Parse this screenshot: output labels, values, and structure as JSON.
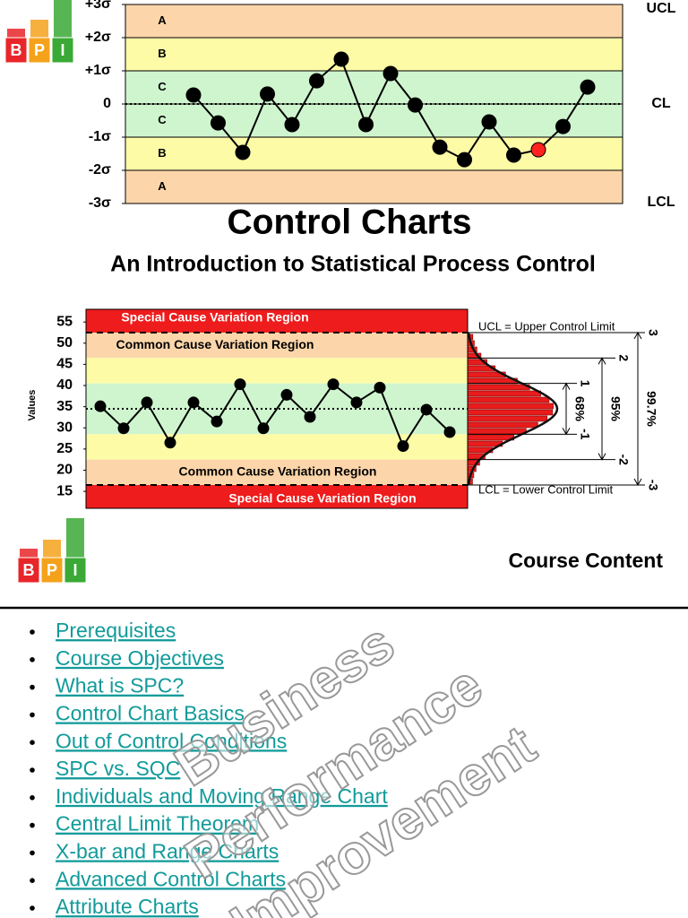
{
  "logo": [
    "B",
    "P",
    "I"
  ],
  "header": {
    "title": "Control Charts",
    "subtitle": "An Introduction to  Statistical Process Control"
  },
  "chart_data": [
    {
      "type": "line",
      "ylim": [
        -3,
        3
      ],
      "yticks": [
        {
          "value": 3,
          "label": "+3σ"
        },
        {
          "value": 2,
          "label": "+2σ"
        },
        {
          "value": 1,
          "label": "+1σ"
        },
        0,
        {
          "value": -1,
          "label": "-1σ"
        },
        {
          "value": -2,
          "label": "-2σ"
        },
        {
          "value": -3,
          "label": "-3σ"
        }
      ],
      "zones": [
        {
          "label": "A",
          "from": 2,
          "to": 3,
          "color": "#fcd6aa"
        },
        {
          "label": "B",
          "from": 1,
          "to": 2,
          "color": "#fdfba6"
        },
        {
          "label": "C",
          "from": 0,
          "to": 1,
          "color": "#cff5cf"
        },
        {
          "label": "C",
          "from": -1,
          "to": 0,
          "color": "#cff5cf"
        },
        {
          "label": "B",
          "from": -2,
          "to": -1,
          "color": "#fdfba6"
        },
        {
          "label": "A",
          "from": -3,
          "to": -2,
          "color": "#fcd6aa"
        }
      ],
      "values": [
        0.27,
        -0.57,
        -1.46,
        0.3,
        -0.62,
        0.7,
        1.35,
        -0.62,
        0.92,
        -0.03,
        -1.3,
        -1.68,
        -0.54,
        -1.54,
        -1.38,
        -0.68,
        0.51
      ],
      "point_color": "#000000",
      "highlight": {
        "index": 14,
        "color": "#ff2020"
      },
      "limit_labels": [
        {
          "label": "UCL",
          "value": 3
        },
        {
          "label": "CL",
          "value": 0
        },
        {
          "label": "LCL",
          "value": -3
        }
      ]
    },
    {
      "type": "line",
      "y_label": "Values",
      "ylim": [
        11,
        58
      ],
      "yticks": [
        15,
        20,
        25,
        30,
        35,
        40,
        45,
        50,
        55
      ],
      "regions": [
        {
          "from": 52.5,
          "to": 58,
          "color": "#ee1c1c",
          "label": "Special Cause Variation Region"
        },
        {
          "from": 46.5,
          "to": 52.5,
          "color": "#fcd6aa",
          "label": "Common Cause Variation Region"
        },
        {
          "from": 40.5,
          "to": 46.5,
          "color": "#fdfba6"
        },
        {
          "from": 28.5,
          "to": 40.5,
          "color": "#cff5cf"
        },
        {
          "from": 22.5,
          "to": 28.5,
          "color": "#fdfba6"
        },
        {
          "from": 16.5,
          "to": 22.5,
          "color": "#fcd6aa",
          "label": "Common Cause Variation Region"
        },
        {
          "from": 11,
          "to": 16.5,
          "color": "#ee1c1c",
          "label": "Special Cause Variation Region"
        }
      ],
      "values": [
        35.1,
        29.9,
        36,
        26.5,
        36,
        31.5,
        40.3,
        29.9,
        37.8,
        32.6,
        40.3,
        36,
        39.5,
        25.7,
        34.3,
        29
      ],
      "center_line": 34.5,
      "limits": [
        {
          "value": 52.5,
          "label": "UCL = Upper Control Limit"
        },
        {
          "value": 16.5,
          "label": "LCL = Lower Control Limit"
        }
      ],
      "sigma_marks": [
        {
          "value": 52.5,
          "label": "3"
        },
        {
          "value": 46.5,
          "label": "2"
        },
        {
          "value": 40.5,
          "label": "1"
        },
        {
          "value": 28.5,
          "label": "-1"
        },
        {
          "value": 22.5,
          "label": "-2"
        },
        {
          "value": 16.5,
          "label": "-3"
        }
      ],
      "coverage": [
        {
          "label": "68%",
          "from": 28.5,
          "to": 40.5
        },
        {
          "label": "95%",
          "from": 22.5,
          "to": 46.5
        },
        {
          "label": "99.7%",
          "from": 16.5,
          "to": 52.5
        }
      ]
    }
  ],
  "course": {
    "heading": "Course Content",
    "items": [
      "Prerequisites",
      "Course Objectives",
      "What is SPC?",
      "Control Chart Basics",
      "Out of Control Conditions",
      "SPC vs. SQC",
      "Individuals and Moving Range Chart",
      "Central Limit Theorem",
      "X-bar and Range Charts",
      "Advanced Control Charts",
      "Attribute Charts"
    ]
  },
  "watermark": [
    "Business",
    "Performance",
    "Improvement"
  ]
}
